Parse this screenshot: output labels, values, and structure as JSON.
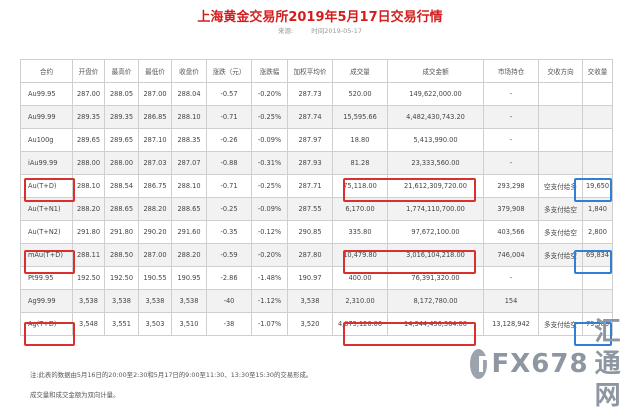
{
  "title": "上海黄金交易所2019年5月17日交易行情",
  "meta": {
    "source": "来源:",
    "time": "时间2019-05-17"
  },
  "headers": [
    "合约",
    "开盘价",
    "最高价",
    "最低价",
    "收盘价",
    "涨跌（元）",
    "涨跌幅",
    "加权平均价",
    "成交量",
    "成交金额",
    "市场持仓",
    "交收方向",
    "交收量"
  ],
  "rows": [
    [
      "Au99.95",
      "287.00",
      "288.05",
      "287.00",
      "288.04",
      "-0.57",
      "-0.20%",
      "287.73",
      "520.00",
      "149,622,000.00",
      "-",
      "",
      ""
    ],
    [
      "Au99.99",
      "289.35",
      "289.35",
      "286.85",
      "288.10",
      "-0.71",
      "-0.25%",
      "287.74",
      "15,595.66",
      "4,482,430,743.20",
      "-",
      "",
      ""
    ],
    [
      "Au100g",
      "289.65",
      "289.65",
      "287.10",
      "288.35",
      "-0.26",
      "-0.09%",
      "287.97",
      "18.80",
      "5,413,990.00",
      "-",
      "",
      ""
    ],
    [
      "iAu99.99",
      "288.00",
      "288.00",
      "287.03",
      "287.07",
      "-0.88",
      "-0.31%",
      "287.93",
      "81.28",
      "23,333,560.00",
      "-",
      "",
      ""
    ],
    [
      "Au(T+D)",
      "288.10",
      "288.54",
      "286.75",
      "288.10",
      "-0.71",
      "-0.25%",
      "287.71",
      "75,118.00",
      "21,612,309,720.00",
      "293,298",
      "空支付给多",
      "19,650"
    ],
    [
      "Au(T+N1)",
      "288.20",
      "288.65",
      "288.20",
      "288.65",
      "-0.25",
      "-0.09%",
      "287.55",
      "6,170.00",
      "1,774,110,700.00",
      "379,908",
      "多支付给空",
      "1,840"
    ],
    [
      "Au(T+N2)",
      "291.80",
      "291.80",
      "290.20",
      "291.60",
      "-0.35",
      "-0.12%",
      "290.85",
      "335.80",
      "97,672,100.00",
      "403,566",
      "多支付给空",
      "2,800"
    ],
    [
      "mAu(T+D)",
      "288.11",
      "288.50",
      "287.00",
      "288.20",
      "-0.59",
      "-0.20%",
      "287.80",
      "10,479.80",
      "3,016,104,218.00",
      "746,004",
      "多支付给空",
      "69,834"
    ],
    [
      "Pt99.95",
      "192.50",
      "192.50",
      "190.55",
      "190.95",
      "-2.86",
      "-1.48%",
      "190.97",
      "400.00",
      "76,391,320.00",
      "-",
      "",
      ""
    ],
    [
      "Ag99.99",
      "3,538",
      "3,538",
      "3,538",
      "3,538",
      "-40",
      "-1.12%",
      "3,538",
      "2,310.00",
      "8,172,780.00",
      "154",
      "",
      ""
    ],
    [
      "Ag(T+D)",
      "3,548",
      "3,551",
      "3,503",
      "3,510",
      "-38",
      "-1.07%",
      "3,520",
      "4,075,126.00",
      "14,344,456,364.00",
      "13,128,942",
      "多支付给空",
      "79,560"
    ]
  ],
  "notes": [
    "注:此表的数据由5月16日的20:00至2:30和5月17日的9:00至11:30、13:30至15:30的交易形成。",
    "成交量和成交金额为双向计量。"
  ],
  "watermark": {
    "text": "FX678",
    "text2": "汇通网"
  }
}
